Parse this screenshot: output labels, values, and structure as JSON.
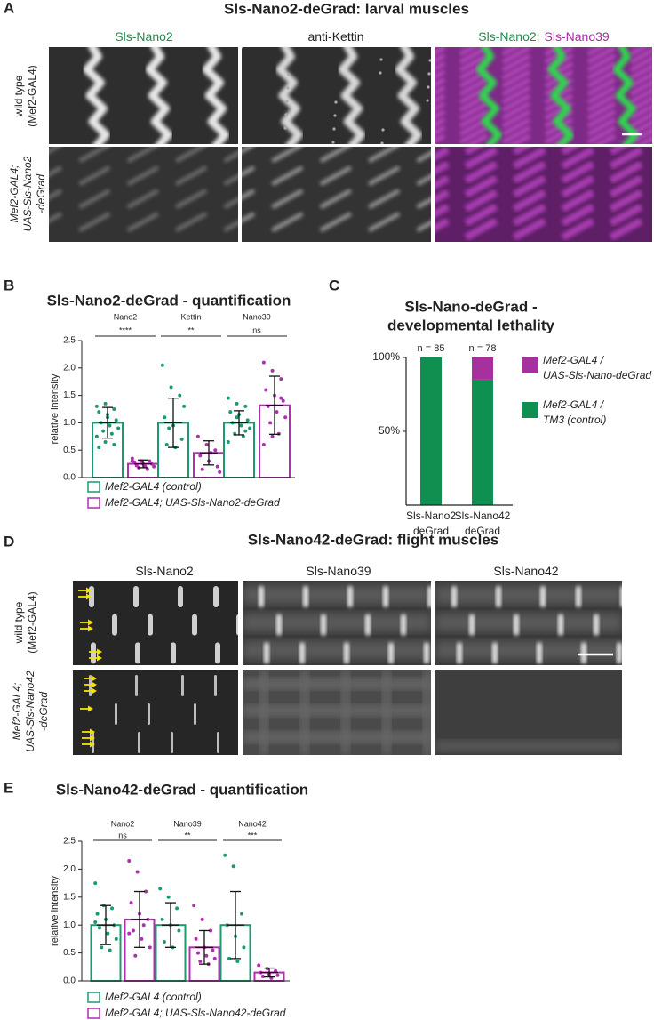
{
  "panels": [
    {
      "letter": "A",
      "title": "Sls-Nano2-deGrad: larval muscles",
      "columns": [
        [
          {
            "text": "Sls-Nano2",
            "color": "#1e8c4e"
          }
        ],
        [
          {
            "text": "anti-Kettin",
            "color": "#222222"
          }
        ],
        [
          {
            "text": "Sls-Nano2;",
            "color": "#1e8c4e"
          },
          {
            "text": "Sls-Nano39",
            "color": "#a52aa5"
          }
        ]
      ],
      "rows": [
        [
          "wild type",
          "(Mef2-GAL4)"
        ],
        [
          "Mef2-GAL4;",
          "UAS-Sls-Nano2",
          "-deGrad"
        ]
      ]
    },
    {
      "letter": "B"
    },
    {
      "letter": "C"
    },
    {
      "letter": "D",
      "title": "Sls-Nano42-deGrad: flight muscles",
      "columns": [
        [
          {
            "text": "Sls-Nano2",
            "color": "#222222"
          }
        ],
        [
          {
            "text": "Sls-Nano39",
            "color": "#222222"
          }
        ],
        [
          {
            "text": "Sls-Nano42",
            "color": "#222222"
          }
        ]
      ],
      "rows": [
        [
          "wild type",
          "(Mef2-GAL4)"
        ],
        [
          "Mef2-GAL4;",
          "UAS-Sls-Nano42",
          "-deGrad"
        ]
      ]
    },
    {
      "letter": "E"
    }
  ],
  "chart_data": [
    {
      "type": "bar",
      "title": "Sls-Nano2-deGrad - quantification",
      "ylabel": "relative intensity",
      "categories": [
        "Nano2",
        "Kettin",
        "Nano39"
      ],
      "significance": [
        "****",
        "**",
        "ns"
      ],
      "ylim": [
        0,
        2.5
      ],
      "yticks": [
        {
          "value": 0,
          "label": "0.0"
        },
        0.5,
        {
          "value": 1,
          "label": "1.0"
        },
        1.5,
        {
          "value": 2,
          "label": "2.0"
        },
        2.5
      ],
      "series": [
        {
          "name": "Mef2-GAL4 (control)",
          "color": "#1d9a6c",
          "values": [
            1.0,
            1.0,
            1.0
          ],
          "errors": [
            0.28,
            0.45,
            0.22
          ],
          "points": [
            [
              1.3,
              1.35,
              1.25,
              1.2,
              1.1,
              1.05,
              1.0,
              0.95,
              0.9,
              0.85,
              0.8,
              0.75,
              0.65,
              0.6,
              0.55,
              1.15
            ],
            [
              2.05,
              1.65,
              1.5,
              1.1,
              0.95,
              0.7,
              0.6,
              0.55,
              1.3,
              0.9
            ],
            [
              1.45,
              1.35,
              1.3,
              1.2,
              1.15,
              1.05,
              1.0,
              0.95,
              0.9,
              0.8,
              0.75,
              0.65,
              1.1,
              0.85
            ]
          ]
        },
        {
          "name": "Mef2-GAL4; UAS-Sls-Nano2-deGrad",
          "color": "#b02fb0",
          "values": [
            0.25,
            0.45,
            1.32
          ],
          "errors": [
            0.07,
            0.22,
            0.53
          ],
          "points": [
            [
              0.35,
              0.3,
              0.3,
              0.28,
              0.25,
              0.25,
              0.22,
              0.2,
              0.2,
              0.18,
              0.15,
              0.3
            ],
            [
              0.75,
              0.6,
              0.5,
              0.4,
              0.3,
              0.2,
              0.15,
              0.45,
              0.1
            ],
            [
              2.1,
              1.95,
              1.8,
              1.6,
              1.5,
              1.4,
              1.3,
              1.2,
              1.1,
              1.0,
              0.8,
              0.6,
              0.75,
              1.45
            ]
          ]
        }
      ]
    },
    {
      "type": "stacked_bar",
      "title": [
        "Sls-Nano-deGrad -",
        "developmental lethality"
      ],
      "categories": [
        [
          "Sls-Nano2",
          "deGrad"
        ],
        [
          "Sls-Nano42",
          "deGrad"
        ]
      ],
      "annotations": [
        "n = 85",
        "n = 78"
      ],
      "ylim": [
        0,
        100
      ],
      "yticks": [
        {
          "value": 50,
          "label": "50%"
        },
        {
          "value": 100,
          "label": "100%"
        }
      ],
      "series": [
        {
          "name": [
            "Mef2-GAL4 /",
            "TM3 (control)"
          ],
          "color": "#0f9050",
          "values": [
            100,
            85
          ]
        },
        {
          "name": [
            "Mef2-GAL4 /",
            "UAS-Sls-Nano-deGrad"
          ],
          "color": "#a7309f",
          "values": [
            0,
            15
          ]
        }
      ]
    },
    {
      "type": "bar",
      "title": "Sls-Nano42-deGrad - quantification",
      "ylabel": "relative intensity",
      "categories": [
        "Nano2",
        "Nano39",
        "Nano42"
      ],
      "significance": [
        "ns",
        "**",
        "***"
      ],
      "ylim": [
        0,
        2.5
      ],
      "yticks": [
        {
          "value": 0,
          "label": "0.0"
        },
        0.5,
        {
          "value": 1,
          "label": "1.0"
        },
        1.5,
        {
          "value": 2,
          "label": "2.0"
        },
        2.5
      ],
      "series": [
        {
          "name": "Mef2-GAL4 (control)",
          "color": "#1d9a6c",
          "values": [
            1.0,
            1.0,
            1.0
          ],
          "errors": [
            0.35,
            0.4,
            0.6
          ],
          "points": [
            [
              1.75,
              1.35,
              1.3,
              1.2,
              1.1,
              1.0,
              0.95,
              0.85,
              0.75,
              0.6,
              0.55,
              1.05
            ],
            [
              1.65,
              1.5,
              1.3,
              1.1,
              1.0,
              0.9,
              0.7,
              0.6
            ],
            [
              2.25,
              2.05,
              1.2,
              1.0,
              0.8,
              0.6,
              0.4,
              0.35
            ]
          ]
        },
        {
          "name": "Mef2-GAL4; UAS-Sls-Nano42-deGrad",
          "color": "#b02fb0",
          "values": [
            1.1,
            0.6,
            0.15
          ],
          "errors": [
            0.5,
            0.3,
            0.08
          ],
          "points": [
            [
              2.15,
              1.95,
              1.6,
              1.4,
              1.2,
              1.1,
              0.9,
              0.75,
              0.6,
              0.45,
              1.0,
              0.85
            ],
            [
              1.35,
              1.1,
              0.9,
              0.75,
              0.6,
              0.55,
              0.5,
              0.45,
              0.4,
              0.35,
              0.3
            ],
            [
              0.28,
              0.22,
              0.18,
              0.15,
              0.12,
              0.1,
              0.08,
              0.05
            ]
          ]
        }
      ]
    }
  ]
}
